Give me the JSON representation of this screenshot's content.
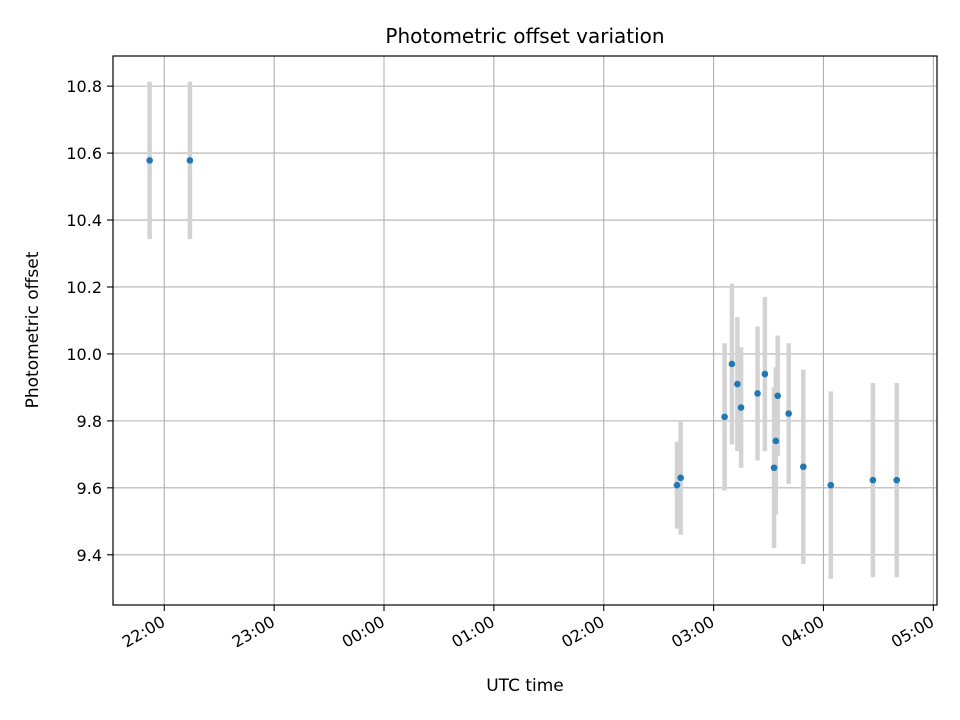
{
  "chart_data": {
    "type": "scatter",
    "title": "Photometric offset variation",
    "xlabel": "UTC time",
    "ylabel": "Photometric offset",
    "x_unit": "UTC time of day",
    "x_continues_past_midnight": true,
    "xlim": [
      "21:32",
      "05:02"
    ],
    "ylim": [
      9.25,
      10.89
    ],
    "x_ticks": [
      "22:00",
      "23:00",
      "00:00",
      "01:00",
      "02:00",
      "03:00",
      "04:00",
      "05:00"
    ],
    "y_ticks": [
      "9.4",
      "9.6",
      "9.8",
      "10.0",
      "10.2",
      "10.4",
      "10.6",
      "10.8"
    ],
    "grid": true,
    "point_color": "#1f77b4",
    "errorbar_color": "#d3d3d3",
    "points": [
      {
        "time": "21:52",
        "y": 10.578,
        "err": 0.235
      },
      {
        "time": "22:14",
        "y": 10.578,
        "err": 0.235
      },
      {
        "time": "02:40",
        "y": 9.608,
        "err": 0.13
      },
      {
        "time": "02:42",
        "y": 9.63,
        "err": 0.17
      },
      {
        "time": "03:06",
        "y": 9.812,
        "err": 0.22
      },
      {
        "time": "03:10",
        "y": 9.97,
        "err": 0.24
      },
      {
        "time": "03:13",
        "y": 9.91,
        "err": 0.2
      },
      {
        "time": "03:15",
        "y": 9.84,
        "err": 0.18
      },
      {
        "time": "03:24",
        "y": 9.882,
        "err": 0.2
      },
      {
        "time": "03:28",
        "y": 9.94,
        "err": 0.23
      },
      {
        "time": "03:33",
        "y": 9.66,
        "err": 0.24
      },
      {
        "time": "03:34",
        "y": 9.74,
        "err": 0.22
      },
      {
        "time": "03:35",
        "y": 9.875,
        "err": 0.18
      },
      {
        "time": "03:41",
        "y": 9.822,
        "err": 0.21
      },
      {
        "time": "03:49",
        "y": 9.663,
        "err": 0.29
      },
      {
        "time": "04:04",
        "y": 9.608,
        "err": 0.28
      },
      {
        "time": "04:27",
        "y": 9.623,
        "err": 0.29
      },
      {
        "time": "04:40",
        "y": 9.623,
        "err": 0.29
      }
    ]
  }
}
